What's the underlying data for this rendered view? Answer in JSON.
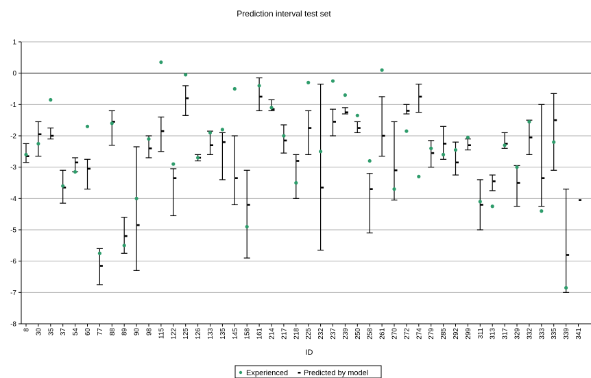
{
  "chart_data": {
    "type": "scatter",
    "title": "Prediction interval test set",
    "xlabel": "ID",
    "ylabel": "",
    "ylim": [
      -8,
      1
    ],
    "yticks": [
      1,
      0,
      -1,
      -2,
      -3,
      -4,
      -5,
      -6,
      -7,
      -8
    ],
    "grid": true,
    "legend_position": "bottom",
    "colors": {
      "experienced": "#2e9c6b",
      "predicted": "#000000",
      "grid": "#b0b0b0"
    },
    "categories": [
      "8",
      "30",
      "35",
      "37",
      "54",
      "60",
      "77",
      "88",
      "89",
      "90",
      "98",
      "115",
      "122",
      "125",
      "126",
      "133",
      "135",
      "145",
      "158",
      "161",
      "214",
      "217",
      "218",
      "225",
      "232",
      "237",
      "239",
      "250",
      "258",
      "261",
      "270",
      "272",
      "274",
      "279",
      "285",
      "292",
      "299",
      "311",
      "313",
      "317",
      "329",
      "332",
      "333",
      "335",
      "339",
      "341"
    ],
    "series": [
      {
        "name": "Experienced",
        "marker": "dot",
        "values": [
          -2.6,
          -2.25,
          -0.85,
          -3.6,
          -3.15,
          -1.7,
          -5.75,
          -1.6,
          -5.5,
          -4.0,
          -2.1,
          0.35,
          -2.9,
          -0.05,
          -2.7,
          -1.9,
          -1.8,
          -0.5,
          -4.9,
          -0.4,
          -1.1,
          -2.0,
          -3.5,
          -0.3,
          -2.5,
          -0.25,
          -0.7,
          -1.35,
          -2.8,
          0.1,
          -3.7,
          -1.85,
          -3.3,
          -2.4,
          -2.6,
          -2.45,
          -2.05,
          -4.1,
          -4.25,
          -2.3,
          -3.0,
          -1.55,
          -4.4,
          -2.2,
          -6.85,
          null
        ]
      },
      {
        "name": "Predicted by model",
        "marker": "dash",
        "values": [
          -2.65,
          -1.95,
          -2.0,
          -3.65,
          -2.85,
          -3.05,
          -6.15,
          -1.55,
          -5.2,
          -4.85,
          -2.4,
          -1.85,
          -3.35,
          -0.8,
          -2.7,
          -2.3,
          -2.2,
          -3.35,
          -4.2,
          -0.75,
          -1.15,
          -2.15,
          -2.8,
          -1.75,
          -3.65,
          -1.55,
          -1.25,
          -1.75,
          -3.7,
          -2.0,
          -3.1,
          -1.2,
          -0.75,
          -2.55,
          -2.25,
          -2.85,
          -2.3,
          -4.2,
          -3.45,
          -2.25,
          -3.5,
          -2.05,
          -3.35,
          -1.5,
          -5.8,
          -4.05
        ]
      }
    ],
    "intervals": {
      "lower": [
        -2.85,
        -2.65,
        -2.1,
        -4.15,
        -3.15,
        -3.7,
        -6.75,
        -2.3,
        -5.75,
        -6.3,
        -2.7,
        -2.5,
        -4.55,
        -1.35,
        -2.8,
        -2.6,
        -3.4,
        -4.2,
        -5.9,
        -1.2,
        -1.2,
        -2.55,
        -4.0,
        -2.6,
        -5.65,
        -2.0,
        -1.3,
        -1.9,
        -5.1,
        -2.65,
        -4.05,
        -1.3,
        -1.25,
        -3.0,
        -2.75,
        -3.25,
        -2.45,
        -5.0,
        -3.75,
        -2.4,
        -4.25,
        -2.6,
        -4.25,
        -3.1,
        -7.0,
        null
      ],
      "upper": [
        -2.25,
        -1.55,
        -1.75,
        -3.1,
        -2.7,
        -2.75,
        -5.6,
        -1.2,
        -4.6,
        -2.35,
        -2.0,
        -1.4,
        -3.05,
        -0.4,
        -2.6,
        -1.85,
        -1.9,
        -2.0,
        -3.1,
        -0.15,
        -0.85,
        -1.65,
        -2.6,
        -1.2,
        -0.35,
        -1.15,
        -1.1,
        -1.55,
        -3.2,
        -0.75,
        -1.55,
        -1.0,
        -0.35,
        -2.15,
        -1.7,
        -2.2,
        -2.1,
        -3.4,
        -3.25,
        -1.9,
        -2.95,
        -1.5,
        -1.0,
        -0.65,
        -3.7,
        null
      ]
    }
  }
}
